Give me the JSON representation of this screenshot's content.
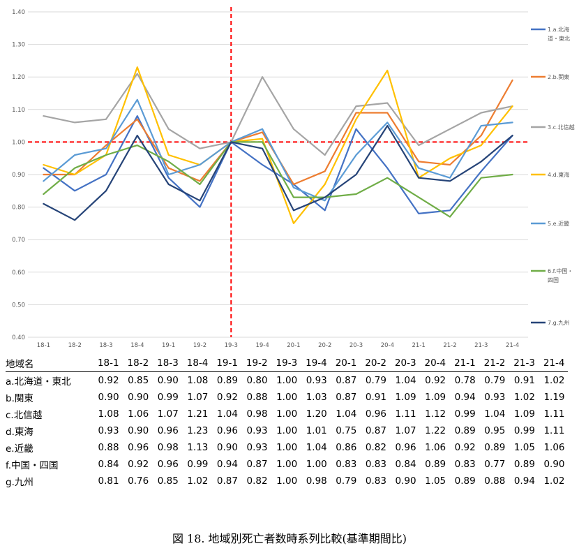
{
  "chart_data": {
    "type": "line",
    "categories": [
      "18-1",
      "18-2",
      "18-3",
      "18-4",
      "19-1",
      "19-2",
      "19-3",
      "19-4",
      "20-1",
      "20-2",
      "20-3",
      "20-4",
      "21-1",
      "21-2",
      "21-3",
      "21-4"
    ],
    "yticks": [
      "0.40",
      "0.50",
      "0.60",
      "0.70",
      "0.80",
      "0.90",
      "1.00",
      "1.10",
      "1.20",
      "1.30",
      "1.40"
    ],
    "ylim": [
      0.4,
      1.4
    ],
    "reference_line": 1.0,
    "vertical_marker": "19-3",
    "legend_position": "right",
    "series": [
      {
        "name": "1.a.北海道・東北",
        "legend_lines": [
          "1.a.北海",
          "道・東北"
        ],
        "color": "#4472C4",
        "values": [
          0.92,
          0.85,
          0.9,
          1.08,
          0.89,
          0.8,
          1.0,
          0.93,
          0.87,
          0.79,
          1.04,
          0.92,
          0.78,
          0.79,
          0.91,
          1.02
        ]
      },
      {
        "name": "2.b.関東",
        "legend_lines": [
          "2.b.関東"
        ],
        "color": "#ED7D31",
        "values": [
          0.9,
          0.9,
          0.99,
          1.07,
          0.92,
          0.88,
          1.0,
          1.03,
          0.87,
          0.91,
          1.09,
          1.09,
          0.94,
          0.93,
          1.02,
          1.19
        ]
      },
      {
        "name": "3.c.北信越",
        "legend_lines": [
          "3.c.北信越"
        ],
        "color": "#A5A5A5",
        "values": [
          1.08,
          1.06,
          1.07,
          1.21,
          1.04,
          0.98,
          1.0,
          1.2,
          1.04,
          0.96,
          1.11,
          1.12,
          0.99,
          1.04,
          1.09,
          1.11
        ]
      },
      {
        "name": "4.d.東海",
        "legend_lines": [
          "4.d.東海"
        ],
        "color": "#FFC000",
        "values": [
          0.93,
          0.9,
          0.96,
          1.23,
          0.96,
          0.93,
          1.0,
          1.01,
          0.75,
          0.87,
          1.07,
          1.22,
          0.89,
          0.95,
          0.99,
          1.11
        ]
      },
      {
        "name": "5.e.近畿",
        "legend_lines": [
          "5.e.近畿"
        ],
        "color": "#5B9BD5",
        "values": [
          0.88,
          0.96,
          0.98,
          1.13,
          0.9,
          0.93,
          1.0,
          1.04,
          0.86,
          0.82,
          0.96,
          1.06,
          0.92,
          0.89,
          1.05,
          1.06
        ]
      },
      {
        "name": "6.f.中国・四国",
        "legend_lines": [
          "6.f.中国・",
          "四国"
        ],
        "color": "#70AD47",
        "values": [
          0.84,
          0.92,
          0.96,
          0.99,
          0.94,
          0.87,
          1.0,
          1.0,
          0.83,
          0.83,
          0.84,
          0.89,
          0.83,
          0.77,
          0.89,
          0.9
        ]
      },
      {
        "name": "7.g.九州",
        "legend_lines": [
          "7.g.九州"
        ],
        "color": "#264478",
        "values": [
          0.81,
          0.76,
          0.85,
          1.02,
          0.87,
          0.82,
          1.0,
          0.98,
          0.79,
          0.83,
          0.9,
          1.05,
          0.89,
          0.88,
          0.94,
          1.02
        ]
      }
    ]
  },
  "table": {
    "region_header": "地域名",
    "columns": [
      "18-1",
      "18-2",
      "18-3",
      "18-4",
      "19-1",
      "19-2",
      "19-3",
      "19-4",
      "20-1",
      "20-2",
      "20-3",
      "20-4",
      "21-1",
      "21-2",
      "21-3",
      "21-4"
    ],
    "rows": [
      {
        "region": "a.北海道・東北",
        "values": [
          "0.92",
          "0.85",
          "0.90",
          "1.08",
          "0.89",
          "0.80",
          "1.00",
          "0.93",
          "0.87",
          "0.79",
          "1.04",
          "0.92",
          "0.78",
          "0.79",
          "0.91",
          "1.02"
        ]
      },
      {
        "region": "b.関東",
        "values": [
          "0.90",
          "0.90",
          "0.99",
          "1.07",
          "0.92",
          "0.88",
          "1.00",
          "1.03",
          "0.87",
          "0.91",
          "1.09",
          "1.09",
          "0.94",
          "0.93",
          "1.02",
          "1.19"
        ]
      },
      {
        "region": "c.北信越",
        "values": [
          "1.08",
          "1.06",
          "1.07",
          "1.21",
          "1.04",
          "0.98",
          "1.00",
          "1.20",
          "1.04",
          "0.96",
          "1.11",
          "1.12",
          "0.99",
          "1.04",
          "1.09",
          "1.11"
        ]
      },
      {
        "region": "d.東海",
        "values": [
          "0.93",
          "0.90",
          "0.96",
          "1.23",
          "0.96",
          "0.93",
          "1.00",
          "1.01",
          "0.75",
          "0.87",
          "1.07",
          "1.22",
          "0.89",
          "0.95",
          "0.99",
          "1.11"
        ]
      },
      {
        "region": "e.近畿",
        "values": [
          "0.88",
          "0.96",
          "0.98",
          "1.13",
          "0.90",
          "0.93",
          "1.00",
          "1.04",
          "0.86",
          "0.82",
          "0.96",
          "1.06",
          "0.92",
          "0.89",
          "1.05",
          "1.06"
        ]
      },
      {
        "region": "f.中国・四国",
        "values": [
          "0.84",
          "0.92",
          "0.96",
          "0.99",
          "0.94",
          "0.87",
          "1.00",
          "1.00",
          "0.83",
          "0.83",
          "0.84",
          "0.89",
          "0.83",
          "0.77",
          "0.89",
          "0.90"
        ]
      },
      {
        "region": "g.九州",
        "values": [
          "0.81",
          "0.76",
          "0.85",
          "1.02",
          "0.87",
          "0.82",
          "1.00",
          "0.98",
          "0.79",
          "0.83",
          "0.90",
          "1.05",
          "0.89",
          "0.88",
          "0.94",
          "1.02"
        ]
      }
    ]
  },
  "caption": "図 18.  地域別死亡者数時系列比較(基準期間比)"
}
